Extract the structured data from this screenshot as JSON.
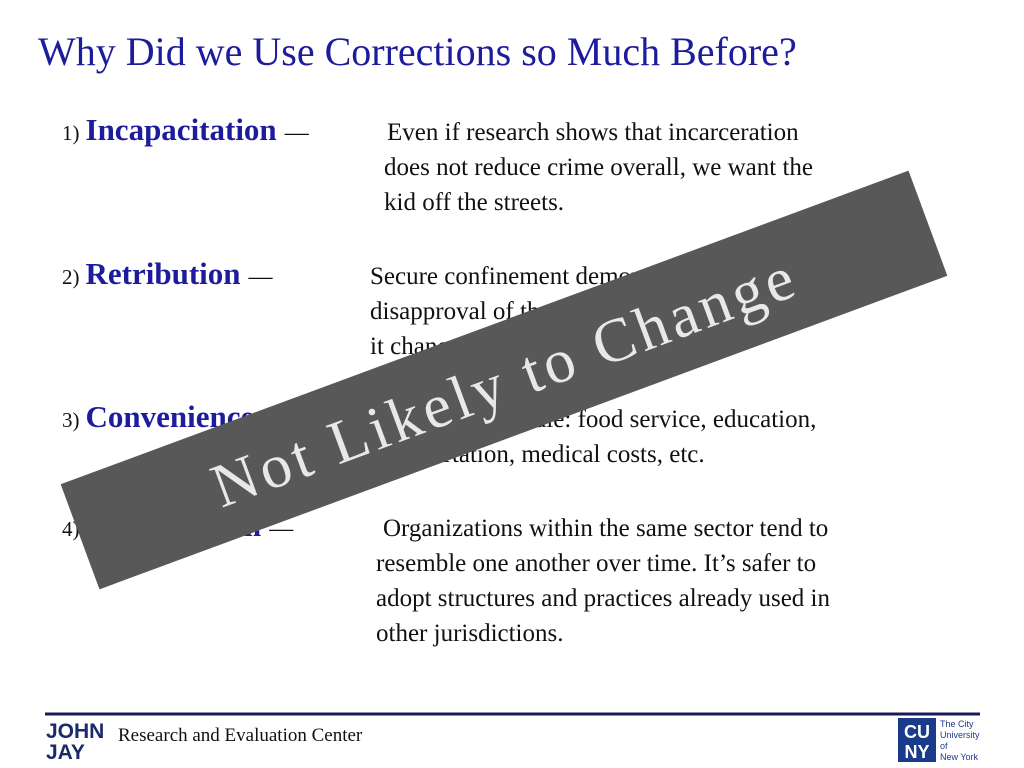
{
  "title": "Why Did we Use Corrections so Much Before?",
  "items": [
    {
      "number": "1)",
      "term": "Incapacitation",
      "dash": "—",
      "lines": [
        "Even if research shows that incarceration",
        "does not reduce crime overall, we want the",
        "kid off the streets."
      ]
    },
    {
      "number": "2)",
      "term": "Retribution",
      "dash": "—",
      "lines": [
        "Secure confinement demonstrates",
        "disapproval of the behavior, whether or not",
        "it changes behavior."
      ]
    },
    {
      "number": "3)",
      "term": "Convenience",
      "dash": "—",
      "lines": [
        "Economies of scale: food service, education,",
        "transportation, medical costs, etc."
      ]
    },
    {
      "number": "4)",
      "term": "Isomorphism",
      "dash": "—",
      "lines": [
        "Organizations within the same sector tend to",
        "resemble one another over time. It’s safer to",
        "adopt structures and practices already used in",
        "other jurisdictions."
      ]
    }
  ],
  "banner": "Not Likely to Change",
  "footer": {
    "center": "Research and Evaluation Center",
    "left_logo": [
      "JOHN",
      "JAY"
    ],
    "right_logo": {
      "mark": [
        "CU",
        "NY"
      ],
      "text": [
        "The City",
        "University",
        "of",
        "New York"
      ]
    }
  }
}
